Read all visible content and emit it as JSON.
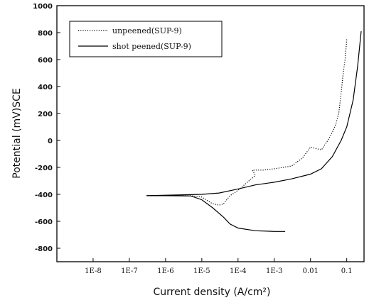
{
  "chart_data": {
    "type": "line",
    "xlabel": "Current density (A/cm²)",
    "ylabel": "Potential (mV)SCE",
    "x_scale": "log",
    "xlim": [
      1e-09,
      0.3
    ],
    "ylim": [
      -900,
      1000
    ],
    "x_tick_values": [
      1e-08,
      1e-07,
      1e-06,
      1e-05,
      0.0001,
      0.001,
      0.01,
      0.1
    ],
    "x_tick_labels": [
      "1E-8",
      "1E-7",
      "1E-6",
      "1E-5",
      "1E-4",
      "1E-3",
      "0.01",
      "0.1"
    ],
    "y_tick_values": [
      1000,
      800,
      600,
      400,
      200,
      0,
      -200,
      -400,
      -600,
      -800
    ],
    "y_tick_labels": [
      "1000",
      "800",
      "600",
      "400",
      "200",
      "0",
      "-200",
      "-400",
      "-600",
      "-800"
    ],
    "grid": false,
    "legend_position": "top-left",
    "series": [
      {
        "name": "unpeened(SUP-9)",
        "style": "dotted",
        "color": "#000000",
        "branches": [
          [
            {
              "x": 3e-07,
              "y": -410
            },
            {
              "x": 1e-06,
              "y": -408
            },
            {
              "x": 5e-06,
              "y": -410
            },
            {
              "x": 1e-05,
              "y": -420
            },
            {
              "x": 1.5e-05,
              "y": -450
            },
            {
              "x": 2e-05,
              "y": -470
            },
            {
              "x": 3e-05,
              "y": -480
            },
            {
              "x": 4e-05,
              "y": -470
            }
          ],
          [
            {
              "x": 4e-05,
              "y": -470
            },
            {
              "x": 6e-05,
              "y": -410
            },
            {
              "x": 0.0001,
              "y": -370
            },
            {
              "x": 0.0002,
              "y": -300
            },
            {
              "x": 0.0003,
              "y": -260
            },
            {
              "x": 0.00025,
              "y": -220
            },
            {
              "x": 0.0005,
              "y": -220
            },
            {
              "x": 0.001,
              "y": -210
            },
            {
              "x": 0.003,
              "y": -190
            },
            {
              "x": 0.006,
              "y": -130
            },
            {
              "x": 0.01,
              "y": -50
            },
            {
              "x": 0.02,
              "y": -70
            },
            {
              "x": 0.03,
              "y": 0
            },
            {
              "x": 0.04,
              "y": 60
            },
            {
              "x": 0.05,
              "y": 120
            },
            {
              "x": 0.06,
              "y": 200
            },
            {
              "x": 0.07,
              "y": 350
            },
            {
              "x": 0.08,
              "y": 500
            },
            {
              "x": 0.09,
              "y": 600
            },
            {
              "x": 0.1,
              "y": 750
            }
          ]
        ]
      },
      {
        "name": "shot peened(SUP-9)",
        "style": "solid",
        "color": "#000000",
        "branches": [
          [
            {
              "x": 3e-07,
              "y": -410
            },
            {
              "x": 1e-06,
              "y": -410
            },
            {
              "x": 5e-06,
              "y": -412
            },
            {
              "x": 1e-05,
              "y": -440
            },
            {
              "x": 2e-05,
              "y": -500
            },
            {
              "x": 4e-05,
              "y": -570
            },
            {
              "x": 6e-05,
              "y": -620
            },
            {
              "x": 0.0001,
              "y": -650
            },
            {
              "x": 0.0003,
              "y": -670
            },
            {
              "x": 0.001,
              "y": -675
            },
            {
              "x": 0.002,
              "y": -675
            }
          ],
          [
            {
              "x": 3e-07,
              "y": -410
            },
            {
              "x": 2e-06,
              "y": -405
            },
            {
              "x": 1e-05,
              "y": -400
            },
            {
              "x": 3e-05,
              "y": -390
            },
            {
              "x": 0.0001,
              "y": -360
            },
            {
              "x": 0.0003,
              "y": -330
            },
            {
              "x": 0.001,
              "y": -310
            },
            {
              "x": 0.003,
              "y": -285
            },
            {
              "x": 0.01,
              "y": -250
            },
            {
              "x": 0.02,
              "y": -210
            },
            {
              "x": 0.04,
              "y": -120
            },
            {
              "x": 0.07,
              "y": 0
            },
            {
              "x": 0.1,
              "y": 100
            },
            {
              "x": 0.15,
              "y": 300
            },
            {
              "x": 0.2,
              "y": 550
            },
            {
              "x": 0.25,
              "y": 810
            }
          ]
        ]
      }
    ]
  }
}
